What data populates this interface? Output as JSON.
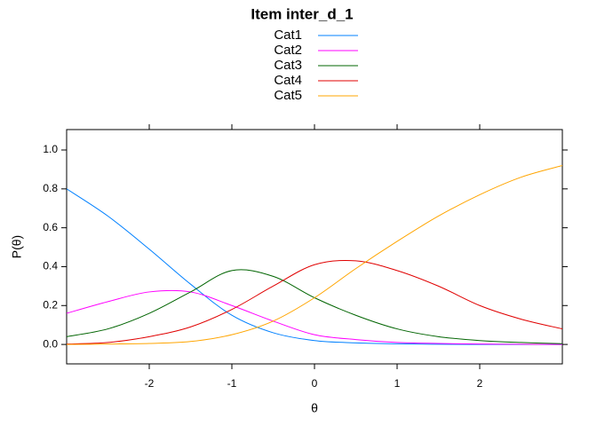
{
  "chart_data": {
    "type": "line",
    "title": "Item inter_d_1",
    "x_label": "θ",
    "y_label": "P(θ)",
    "x": [
      -3,
      -2.5,
      -2,
      -1.5,
      -1,
      -0.5,
      0,
      0.5,
      1,
      1.5,
      2,
      2.5,
      3
    ],
    "series": [
      {
        "name": "Cat1",
        "color": "#0080ff",
        "values": [
          0.8,
          0.66,
          0.49,
          0.31,
          0.15,
          0.06,
          0.02,
          0.008,
          0.003,
          0.001,
          0,
          0,
          0
        ]
      },
      {
        "name": "Cat2",
        "color": "#ff00ff",
        "values": [
          0.16,
          0.22,
          0.27,
          0.27,
          0.2,
          0.12,
          0.05,
          0.025,
          0.01,
          0.005,
          0.002,
          0.001,
          0
        ]
      },
      {
        "name": "Cat3",
        "color": "#006400",
        "values": [
          0.04,
          0.08,
          0.16,
          0.27,
          0.38,
          0.35,
          0.24,
          0.15,
          0.08,
          0.04,
          0.02,
          0.01,
          0.004
        ]
      },
      {
        "name": "Cat4",
        "color": "#e00000",
        "values": [
          0.002,
          0.01,
          0.04,
          0.09,
          0.18,
          0.3,
          0.41,
          0.43,
          0.38,
          0.3,
          0.2,
          0.13,
          0.08
        ]
      },
      {
        "name": "Cat5",
        "color": "#ffa500",
        "values": [
          0,
          0.002,
          0.005,
          0.015,
          0.05,
          0.12,
          0.24,
          0.39,
          0.53,
          0.66,
          0.77,
          0.86,
          0.92
        ]
      }
    ],
    "xlim": [
      -3,
      3
    ],
    "ylim": [
      -0.1,
      1.105
    ],
    "xticks": [
      -2,
      -1,
      0,
      1,
      2
    ],
    "yticks": [
      {
        "value": 0,
        "label": "0.0"
      },
      0.2,
      0.4,
      0.6,
      0.8,
      {
        "value": 1,
        "label": "1.0"
      }
    ],
    "legend": "top"
  }
}
